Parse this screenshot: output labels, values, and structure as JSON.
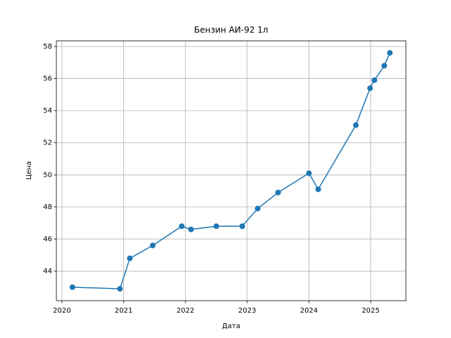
{
  "chart_data": {
    "type": "line",
    "title": "Бензин АИ-92 1л",
    "xlabel": "Дата",
    "ylabel": "Цена",
    "x": [
      2020.17,
      2020.94,
      2021.1,
      2021.47,
      2021.94,
      2022.09,
      2022.5,
      2022.92,
      2023.17,
      2023.5,
      2024.0,
      2024.15,
      2024.76,
      2024.99,
      2025.06,
      2025.22,
      2025.31
    ],
    "series": [
      {
        "name": "Цена",
        "color": "#1f77b4",
        "values": [
          43.0,
          42.9,
          44.8,
          45.6,
          46.8,
          46.6,
          46.8,
          46.8,
          47.9,
          48.9,
          50.1,
          49.1,
          53.1,
          55.4,
          55.9,
          56.8,
          57.6
        ]
      }
    ],
    "xlim": [
      2019.91,
      2025.57
    ],
    "xticks": [
      2020,
      2021,
      2022,
      2023,
      2024,
      2025
    ],
    "ylim": [
      42.16,
      58.35
    ],
    "yticks": [
      44,
      46,
      48,
      50,
      52,
      54,
      56,
      58
    ],
    "grid": true
  }
}
